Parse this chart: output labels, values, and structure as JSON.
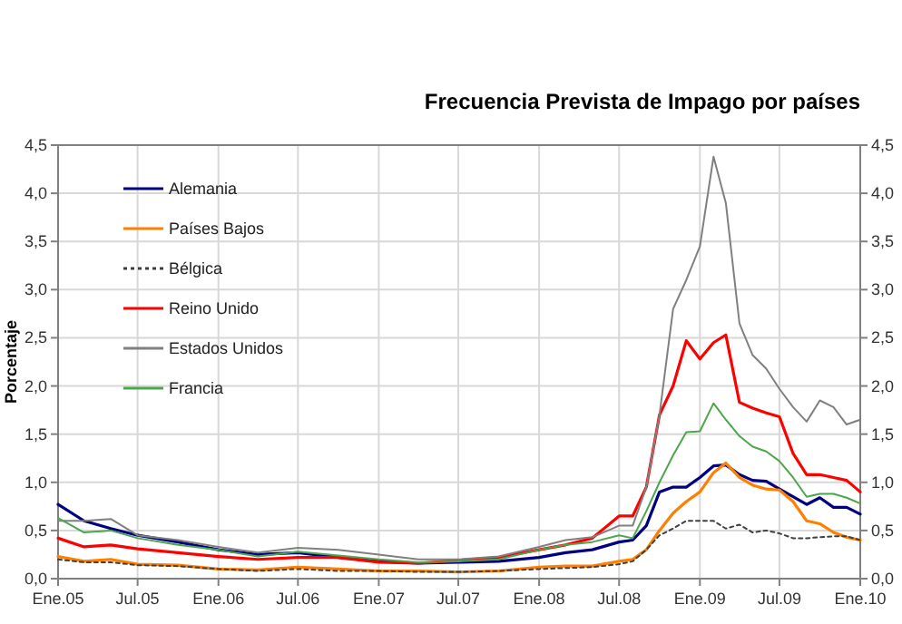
{
  "chart_data": {
    "type": "line",
    "title": "Frecuencia Prevista de Impago por países",
    "ylabel": "Porcentaje",
    "x": [
      "2005-01",
      "2005-03",
      "2005-05",
      "2005-07",
      "2005-10",
      "2006-01",
      "2006-04",
      "2006-07",
      "2006-10",
      "2007-01",
      "2007-04",
      "2007-07",
      "2007-10",
      "2008-01",
      "2008-03",
      "2008-05",
      "2008-07",
      "2008-08",
      "2008-09",
      "2008-10",
      "2008-11",
      "2008-12",
      "2009-01",
      "2009-02",
      "2009-03",
      "2009-04",
      "2009-05",
      "2009-06",
      "2009-07",
      "2009-08",
      "2009-09",
      "2009-10",
      "2009-11",
      "2009-12",
      "2010-01"
    ],
    "series": [
      {
        "name": "Alemania",
        "color": "#000080",
        "line_style": "solid",
        "values": [
          0.77,
          0.6,
          0.52,
          0.45,
          0.38,
          0.3,
          0.25,
          0.27,
          0.22,
          0.18,
          0.16,
          0.17,
          0.18,
          0.22,
          0.27,
          0.3,
          0.38,
          0.4,
          0.55,
          0.9,
          0.95,
          0.95,
          1.05,
          1.17,
          1.18,
          1.08,
          1.02,
          1.01,
          0.93,
          0.85,
          0.77,
          0.84,
          0.74,
          0.74,
          0.67
        ]
      },
      {
        "name": "Países Bajos",
        "color": "#ff7f00",
        "line_style": "solid",
        "values": [
          0.23,
          0.18,
          0.2,
          0.15,
          0.14,
          0.1,
          0.09,
          0.12,
          0.1,
          0.08,
          0.08,
          0.07,
          0.08,
          0.12,
          0.13,
          0.13,
          0.18,
          0.2,
          0.3,
          0.5,
          0.68,
          0.8,
          0.9,
          1.1,
          1.2,
          1.05,
          0.97,
          0.93,
          0.92,
          0.8,
          0.6,
          0.57,
          0.48,
          0.43,
          0.4
        ]
      },
      {
        "name": "Bélgica",
        "color": "#404040",
        "line_style": "dotted",
        "values": [
          0.2,
          0.17,
          0.17,
          0.14,
          0.13,
          0.1,
          0.08,
          0.1,
          0.08,
          0.08,
          0.07,
          0.07,
          0.08,
          0.1,
          0.11,
          0.12,
          0.15,
          0.18,
          0.3,
          0.45,
          0.52,
          0.6,
          0.6,
          0.6,
          0.52,
          0.56,
          0.48,
          0.5,
          0.47,
          0.42,
          0.42,
          0.43,
          0.44,
          0.44,
          0.4
        ]
      },
      {
        "name": "Reino Unido",
        "color": "#ff0000",
        "line_style": "solid",
        "values": [
          0.42,
          0.33,
          0.35,
          0.31,
          0.27,
          0.23,
          0.2,
          0.22,
          0.22,
          0.17,
          0.16,
          0.19,
          0.22,
          0.3,
          0.35,
          0.42,
          0.65,
          0.65,
          0.95,
          1.7,
          2.0,
          2.47,
          2.28,
          2.45,
          2.53,
          1.83,
          1.77,
          1.72,
          1.68,
          1.3,
          1.08,
          1.08,
          1.05,
          1.02,
          0.9
        ]
      },
      {
        "name": "Estados Unidos",
        "color": "#808080",
        "line_style": "solid",
        "values": [
          0.6,
          0.6,
          0.62,
          0.45,
          0.4,
          0.33,
          0.27,
          0.32,
          0.3,
          0.25,
          0.2,
          0.2,
          0.23,
          0.33,
          0.4,
          0.43,
          0.55,
          0.55,
          0.95,
          1.7,
          2.8,
          3.1,
          3.45,
          4.38,
          3.9,
          2.65,
          2.32,
          2.18,
          1.97,
          1.78,
          1.63,
          1.85,
          1.78,
          1.6,
          1.65
        ]
      },
      {
        "name": "Francia",
        "color": "#4ca64c",
        "line_style": "solid",
        "values": [
          0.63,
          0.48,
          0.5,
          0.42,
          0.35,
          0.3,
          0.23,
          0.28,
          0.24,
          0.2,
          0.17,
          0.18,
          0.2,
          0.3,
          0.35,
          0.38,
          0.45,
          0.42,
          0.7,
          1.0,
          1.28,
          1.52,
          1.53,
          1.82,
          1.65,
          1.48,
          1.37,
          1.32,
          1.22,
          1.05,
          0.85,
          0.88,
          0.88,
          0.84,
          0.78
        ]
      }
    ],
    "xlim": [
      "2005-01",
      "2010-01"
    ],
    "xticks": [
      {
        "value": "2005-01",
        "label": "Ene.05"
      },
      {
        "value": "2005-07",
        "label": "Jul.05"
      },
      {
        "value": "2006-01",
        "label": "Ene.06"
      },
      {
        "value": "2006-07",
        "label": "Jul.06"
      },
      {
        "value": "2007-01",
        "label": "Ene.07"
      },
      {
        "value": "2007-07",
        "label": "Jul.07"
      },
      {
        "value": "2008-01",
        "label": "Ene.08"
      },
      {
        "value": "2008-07",
        "label": "Jul.08"
      },
      {
        "value": "2009-01",
        "label": "Ene.09"
      },
      {
        "value": "2009-07",
        "label": "Jul.09"
      },
      {
        "value": "2010-01",
        "label": "Ene.10"
      }
    ],
    "ylim": [
      0,
      4.5
    ],
    "yticks": [
      {
        "value": 0,
        "label": "0,0"
      },
      {
        "value": 0.5,
        "label": "0,5"
      },
      {
        "value": 1,
        "label": "1,0"
      },
      {
        "value": 1.5,
        "label": "1,5"
      },
      {
        "value": 2,
        "label": "2,0"
      },
      {
        "value": 2.5,
        "label": "2,5"
      },
      {
        "value": 3,
        "label": "3,0"
      },
      {
        "value": 3.5,
        "label": "3,5"
      },
      {
        "value": 4,
        "label": "4,0"
      },
      {
        "value": 4.5,
        "label": "4,5"
      }
    ],
    "y2lim": [
      0,
      4.5
    ],
    "y2ticks": [
      {
        "value": 0,
        "label": "0,0"
      },
      {
        "value": 0.5,
        "label": "0,5"
      },
      {
        "value": 1,
        "label": "1,0"
      },
      {
        "value": 1.5,
        "label": "1,5"
      },
      {
        "value": 2,
        "label": "2,0"
      },
      {
        "value": 2.5,
        "label": "2,5"
      },
      {
        "value": 3,
        "label": "3,0"
      },
      {
        "value": 3.5,
        "label": "3,5"
      },
      {
        "value": 4,
        "label": "4,0"
      },
      {
        "value": 4.5,
        "label": "4,5"
      }
    ],
    "grid": true,
    "legend": "top left",
    "marker": "none"
  }
}
